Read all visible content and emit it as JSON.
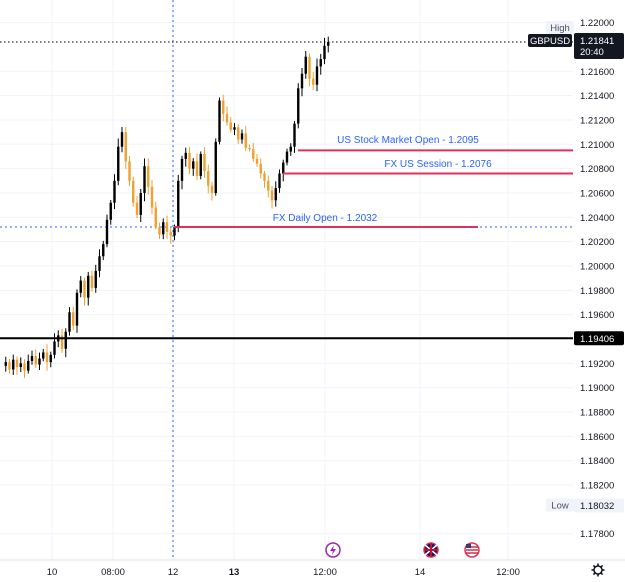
{
  "chart_data": {
    "type": "candlestick",
    "symbol": "GBPUSD",
    "current_price": "1.21841",
    "countdown": "20:40",
    "high_label": "High",
    "high_value": "1.21870",
    "low_label": "Low",
    "low_value": "1.18032",
    "ylim": [
      1.1765,
      1.2212
    ],
    "y_ticks": [
      "1.22000",
      "1.21600",
      "1.21400",
      "1.21200",
      "1.21000",
      "1.20800",
      "1.20600",
      "1.20400",
      "1.20200",
      "1.20000",
      "1.19800",
      "1.19600",
      "1.19200",
      "1.19000",
      "1.18800",
      "1.18600",
      "1.18400",
      "1.18200",
      "1.17800"
    ],
    "x_ticks": [
      {
        "label": "10",
        "bold": false
      },
      {
        "label": "08:00",
        "bold": false
      },
      {
        "label": "12",
        "bold": false
      },
      {
        "label": "13",
        "bold": true
      },
      {
        "label": "12:00",
        "bold": false
      },
      {
        "label": "14",
        "bold": false
      },
      {
        "label": "12:00",
        "bold": false
      }
    ],
    "support_line": {
      "value": 1.19406,
      "label": "1.19406",
      "color": "#000000"
    },
    "levels": [
      {
        "label": "US Stock Market Open - 1.2095",
        "value": 1.2095,
        "color": "#e0315a"
      },
      {
        "label": "FX US Session - 1.2076",
        "value": 1.2076,
        "color": "#e0315a"
      },
      {
        "label": "FX Daily Open - 1.2032",
        "value": 1.2032,
        "color": "#e0315a"
      }
    ],
    "daily_open_guide": {
      "value": 1.2032,
      "color": "#2962ff"
    },
    "colors": {
      "up": "#000000",
      "down": "#f0a030",
      "grid": "#f0f3fa",
      "accent": "#2962ff"
    },
    "price_path": [
      1.1918,
      1.1921,
      1.1915,
      1.1923,
      1.1917,
      1.192,
      1.1914,
      1.1922,
      1.1926,
      1.1919,
      1.1924,
      1.1929,
      1.1921,
      1.1927,
      1.1938,
      1.1943,
      1.1932,
      1.1946,
      1.1962,
      1.1951,
      1.1978,
      1.1988,
      1.1974,
      1.1992,
      1.1982,
      1.1996,
      1.2008,
      1.2018,
      1.2038,
      1.2052,
      1.207,
      1.2098,
      1.211,
      1.2086,
      1.207,
      1.2052,
      1.2042,
      1.206,
      1.2082,
      1.2065,
      1.2048,
      1.2032,
      1.2026,
      1.2036,
      1.2028,
      1.2025,
      1.2032,
      1.207,
      1.2088,
      1.2093,
      1.208,
      1.2086,
      1.2074,
      1.2092,
      1.2078,
      1.2066,
      1.206,
      1.2102,
      1.2136,
      1.2125,
      1.2118,
      1.2112,
      1.2114,
      1.2104,
      1.2109,
      1.2097,
      1.2096,
      1.2088,
      1.2084,
      1.2076,
      1.207,
      1.2062,
      1.2054,
      1.2064,
      1.2076,
      1.2085,
      1.2094,
      1.2098,
      1.2117,
      1.2146,
      1.2158,
      1.2172,
      1.2154,
      1.2149,
      1.2164,
      1.217,
      1.2181,
      1.2184
    ]
  },
  "chart_icons": [
    "lightning-event-icon",
    "uk-flag-icon",
    "us-flag-icon",
    "settings-gear-icon"
  ]
}
